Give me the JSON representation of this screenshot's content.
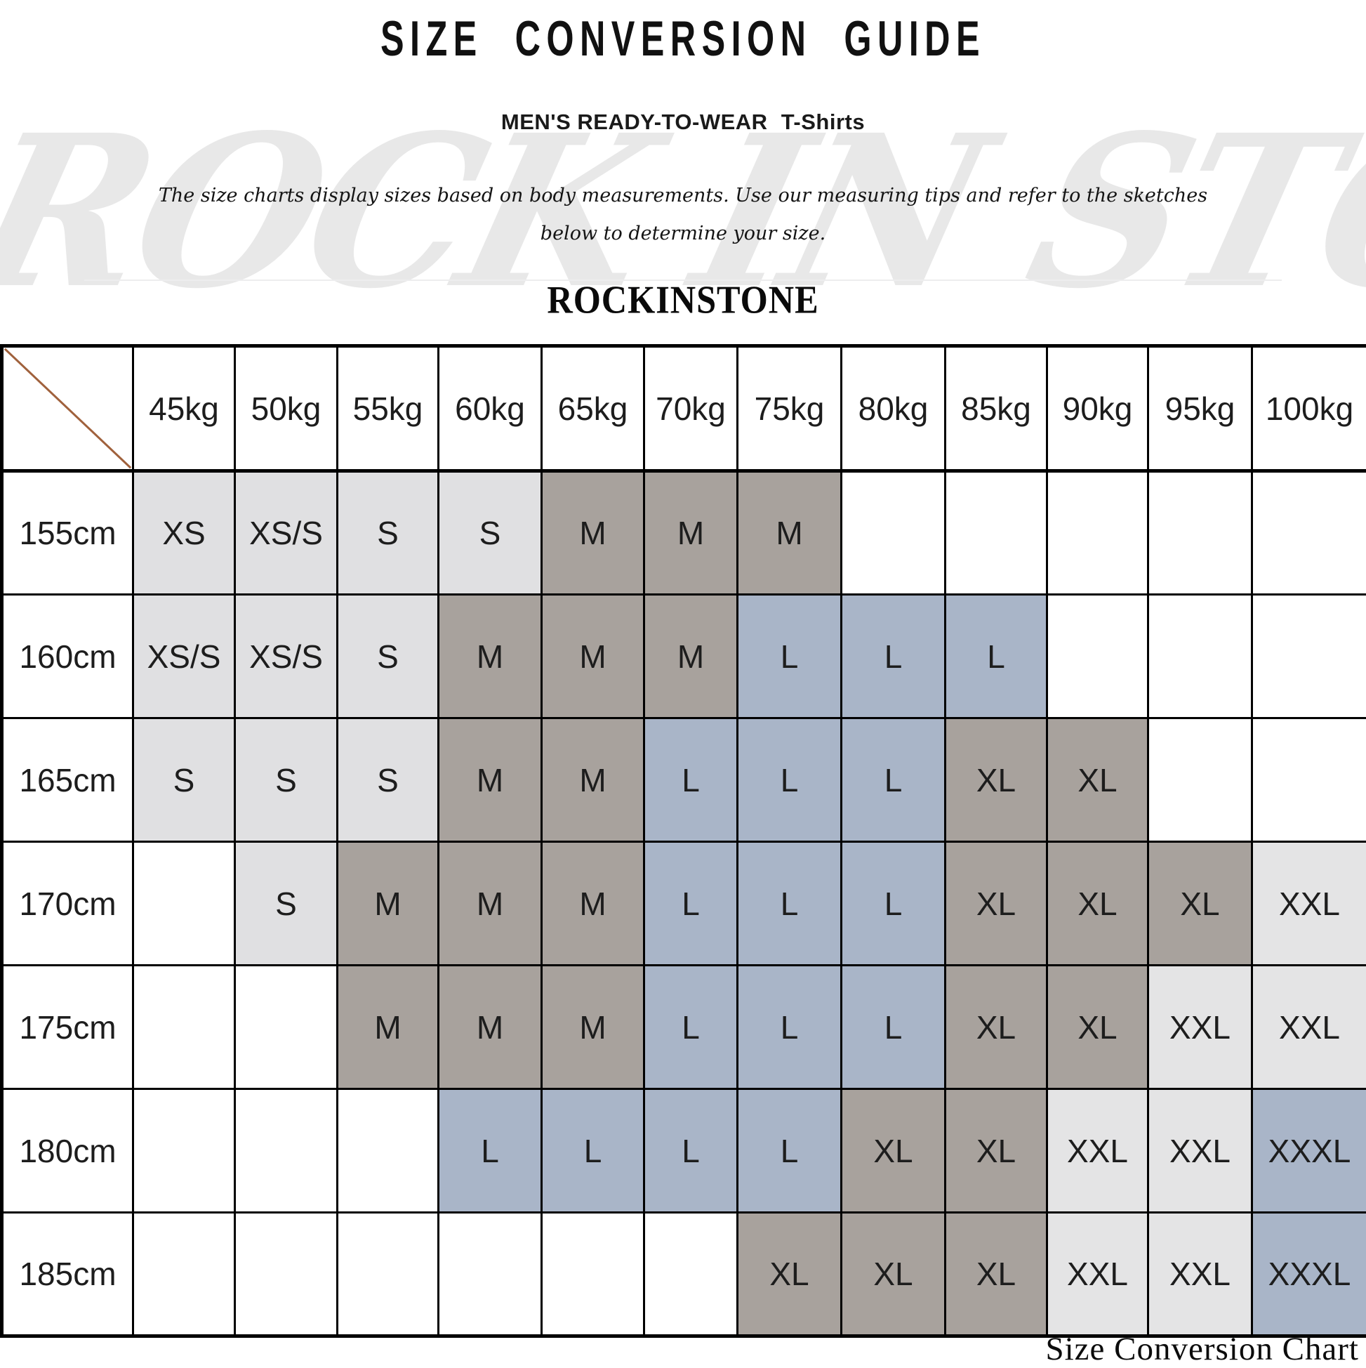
{
  "page": {
    "title": "SIZE CONVERSION GUIDE",
    "subtitle_category": "MEN'S READY-TO-WEAR",
    "subtitle_product": "T-Shirts",
    "description_line1": "The size charts display sizes based on body measurements.  Use our measuring tips and refer to the sketches",
    "description_line2": "below to determine your size.",
    "brand": "ROCKINSTONE",
    "watermark": "ROCK IN STONE",
    "caption": "Size Conversion Chart"
  },
  "colors": {
    "cell_light": "#e0e0e2",
    "cell_lighter": "#e4e4e5",
    "cell_dark": "#a8a29d",
    "cell_blue": "#a9b5c8",
    "diagonal_line": "#a0613c",
    "border": "#000000",
    "text": "#1d1d1d"
  },
  "chart_data": {
    "type": "table",
    "title": "SIZE CONVERSION GUIDE",
    "subtitle": "MEN'S READY-TO-WEAR T-Shirts",
    "x_axis": "weight (kg)",
    "y_axis": "height (cm)",
    "weight_headers": [
      "45kg",
      "50kg",
      "55kg",
      "60kg",
      "65kg",
      "70kg",
      "75kg",
      "80kg",
      "85kg",
      "90kg",
      "95kg",
      "100kg"
    ],
    "shade_legend": {
      "light": "light gray",
      "lighter": "lighter gray",
      "dark": "warm gray",
      "blue": "blue gray",
      "": "white/empty"
    },
    "rows": [
      {
        "height": "155cm",
        "cells": [
          [
            "XS",
            "light"
          ],
          [
            "XS/S",
            "light"
          ],
          [
            "S",
            "light"
          ],
          [
            "S",
            "light"
          ],
          [
            "M",
            "dark"
          ],
          [
            "M",
            "dark"
          ],
          [
            "M",
            "dark"
          ],
          [
            "",
            ""
          ],
          [
            "",
            ""
          ],
          [
            "",
            ""
          ],
          [
            "",
            ""
          ],
          [
            "",
            ""
          ]
        ]
      },
      {
        "height": "160cm",
        "cells": [
          [
            "XS/S",
            "light"
          ],
          [
            "XS/S",
            "light"
          ],
          [
            "S",
            "light"
          ],
          [
            "M",
            "dark"
          ],
          [
            "M",
            "dark"
          ],
          [
            "M",
            "dark"
          ],
          [
            "L",
            "blue"
          ],
          [
            "L",
            "blue"
          ],
          [
            "L",
            "blue"
          ],
          [
            "",
            ""
          ],
          [
            "",
            ""
          ],
          [
            "",
            ""
          ]
        ]
      },
      {
        "height": "165cm",
        "cells": [
          [
            "S",
            "light"
          ],
          [
            "S",
            "light"
          ],
          [
            "S",
            "light"
          ],
          [
            "M",
            "dark"
          ],
          [
            "M",
            "dark"
          ],
          [
            "L",
            "blue"
          ],
          [
            "L",
            "blue"
          ],
          [
            "L",
            "blue"
          ],
          [
            "XL",
            "dark"
          ],
          [
            "XL",
            "dark"
          ],
          [
            "",
            ""
          ],
          [
            "",
            ""
          ]
        ]
      },
      {
        "height": "170cm",
        "cells": [
          [
            "",
            ""
          ],
          [
            "S",
            "light"
          ],
          [
            "M",
            "dark"
          ],
          [
            "M",
            "dark"
          ],
          [
            "M",
            "dark"
          ],
          [
            "L",
            "blue"
          ],
          [
            "L",
            "blue"
          ],
          [
            "L",
            "blue"
          ],
          [
            "XL",
            "dark"
          ],
          [
            "XL",
            "dark"
          ],
          [
            "XL",
            "dark"
          ],
          [
            "XXL",
            "lighter"
          ]
        ]
      },
      {
        "height": "175cm",
        "cells": [
          [
            "",
            ""
          ],
          [
            "",
            ""
          ],
          [
            "M",
            "dark"
          ],
          [
            "M",
            "dark"
          ],
          [
            "M",
            "dark"
          ],
          [
            "L",
            "blue"
          ],
          [
            "L",
            "blue"
          ],
          [
            "L",
            "blue"
          ],
          [
            "XL",
            "dark"
          ],
          [
            "XL",
            "dark"
          ],
          [
            "XXL",
            "lighter"
          ],
          [
            "XXL",
            "lighter"
          ]
        ]
      },
      {
        "height": "180cm",
        "cells": [
          [
            "",
            ""
          ],
          [
            "",
            ""
          ],
          [
            "",
            ""
          ],
          [
            "L",
            "blue"
          ],
          [
            "L",
            "blue"
          ],
          [
            "L",
            "blue"
          ],
          [
            "L",
            "blue"
          ],
          [
            "XL",
            "dark"
          ],
          [
            "XL",
            "dark"
          ],
          [
            "XXL",
            "lighter"
          ],
          [
            "XXL",
            "lighter"
          ],
          [
            "XXXL",
            "blue"
          ]
        ]
      },
      {
        "height": "185cm",
        "cells": [
          [
            "",
            ""
          ],
          [
            "",
            ""
          ],
          [
            "",
            ""
          ],
          [
            "",
            ""
          ],
          [
            "",
            ""
          ],
          [
            "",
            ""
          ],
          [
            "XL",
            "dark"
          ],
          [
            "XL",
            "dark"
          ],
          [
            "XL",
            "dark"
          ],
          [
            "XXL",
            "lighter"
          ],
          [
            "XXL",
            "lighter"
          ],
          [
            "XXXL",
            "blue"
          ]
        ]
      }
    ]
  }
}
